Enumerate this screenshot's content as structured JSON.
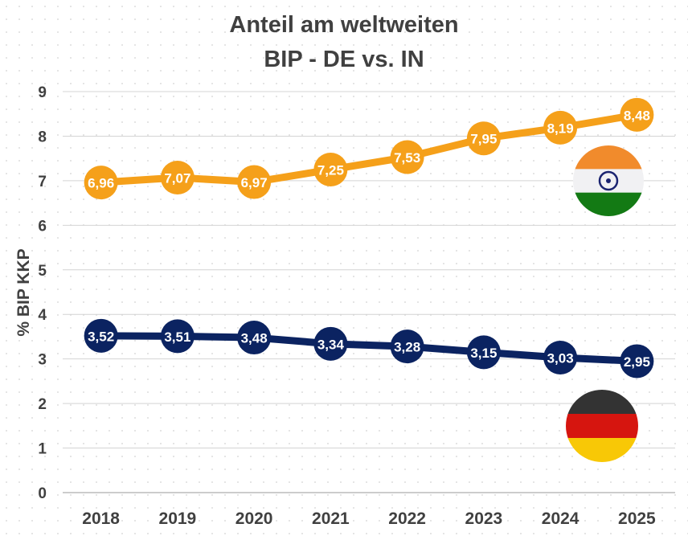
{
  "chart_data": {
    "type": "line",
    "title_lines": [
      "Anteil am weltweiten",
      "BIP - DE vs. IN"
    ],
    "ylabel": "% BIP KKP",
    "xlabel": "",
    "ylim": [
      0,
      9
    ],
    "yticks": [
      "0",
      "1",
      "2",
      "3",
      "4",
      "5",
      "6",
      "7",
      "8",
      "9"
    ],
    "grid": true,
    "categories": [
      "2018",
      "2019",
      "2020",
      "2021",
      "2022",
      "2023",
      "2024",
      "2025"
    ],
    "series": [
      {
        "flag": "india-flag",
        "color": "#F5A01A",
        "values": [
          6.96,
          7.07,
          6.97,
          7.25,
          7.53,
          7.95,
          8.19,
          8.48
        ],
        "labels": [
          "6,96",
          "7,07",
          "6,97",
          "7,25",
          "7,53",
          "7,95",
          "8,19",
          "8,48"
        ]
      },
      {
        "flag": "germany-flag",
        "color": "#0B2361",
        "values": [
          3.52,
          3.51,
          3.48,
          3.34,
          3.28,
          3.15,
          3.03,
          2.95
        ],
        "labels": [
          "3,52",
          "3,51",
          "3,48",
          "3,34",
          "3,28",
          "3,15",
          "3,03",
          "2,95"
        ]
      }
    ]
  }
}
